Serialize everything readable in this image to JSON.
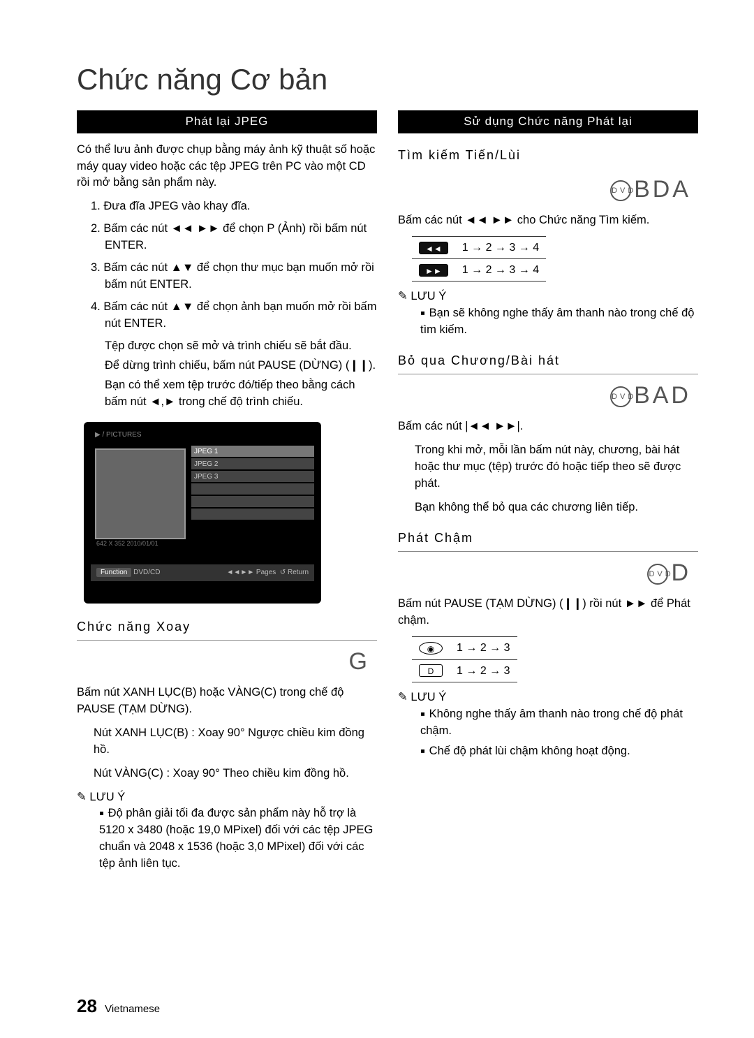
{
  "title": "Chức năng Cơ bản",
  "left": {
    "bar": "Phát lại JPEG",
    "intro": "Có thể lưu ảnh được chụp bằng máy ảnh kỹ thuật số hoặc máy quay video hoặc các tệp JPEG trên PC vào một CD rồi mở bằng sản phẩm này.",
    "steps": [
      "1.  Đưa đĩa JPEG vào khay đĩa.",
      "2.  Bấm các nút ◄◄ ►► để chọn P          (Ảnh) rồi bấm nút ENTER.",
      "3.  Bấm các nút ▲▼ để chọn thư mục bạn muốn mở rồi bấm nút ENTER.",
      "4.  Bấm các nút ▲▼ để chọn ảnh bạn muốn mở rồi bấm nút ENTER."
    ],
    "subs": [
      "Tệp được chọn sẽ mở và trình chiếu sẽ bắt đầu.",
      "Để dừng trình chiếu, bấm nút PAUSE (DỪNG) (❙❙).",
      "Bạn có thể xem tệp trước đó/tiếp theo bằng cách bấm nút ◄,► trong chế độ trình chiếu."
    ],
    "tv": {
      "path": "▶ / PICTURES",
      "items": [
        "JPEG 1",
        "JPEG 2",
        "JPEG 3",
        "",
        "",
        ""
      ],
      "meta": "642 X 352      2010/01/01",
      "func_label": "Function",
      "func_val": "DVD/CD",
      "pages": "◄◄►► Pages",
      "ret": "↺ Return"
    },
    "rotate_head": "Chức năng Xoay",
    "rotate_icon": "G",
    "rotate_body": "Bấm nút XANH LỤC(B) hoặc VÀNG(C) trong chế độ PAUSE (TẠM DỪNG).",
    "rotate_b": "Nút XANH LỤC(B) : Xoay 90° Ngược chiều kim đồng hồ.",
    "rotate_c": "Nút VÀNG(C) : Xoay 90° Theo chiều kim đồng hồ.",
    "note_label": "LƯU Ý",
    "note1": "Độ phân giải tối đa được sản phẩm này hỗ trợ là 5120 x 3480 (hoặc 19,0 MPixel) đối với các tệp JPEG chuẩn và 2048 x 1536 (hoặc 3,0 MPixel) đối với các tệp ảnh liên tục."
  },
  "right": {
    "bar": "Sử dụng Chức năng Phát lại",
    "s1_head": "Tìm kiếm Tiến/Lùi",
    "s1_big": "BDA",
    "s1_body": "Bấm các nút ◄◄ ►► cho Chức năng Tìm kiếm.",
    "s1_rows": [
      {
        "btn": "◄◄",
        "seq": [
          "1",
          "2",
          "3",
          "4"
        ]
      },
      {
        "btn": "►►",
        "seq": [
          "1",
          "2",
          "3",
          "4"
        ]
      }
    ],
    "s1_note": "Bạn sẽ không nghe thấy âm thanh nào trong chế độ tìm kiếm.",
    "s2_head": "Bỏ qua Chương/Bài hát",
    "s2_big": "BAD",
    "s2_body": "Bấm các nút |◄◄ ►►|.",
    "s2_p1": "Trong khi mở, mỗi lần bấm nút này, chương, bài hát hoặc thư mục (tệp) trước đó hoặc tiếp theo sẽ được phát.",
    "s2_p2": "Bạn không thể bỏ qua các chương liên tiếp.",
    "s3_head": "Phát Chậm",
    "s3_icon": "D",
    "s3_body": "Bấm nút PAUSE (TẠM DỪNG) (❙❙) rồi nút ►► để Phát chậm.",
    "s3_rows": [
      {
        "btn": "◉",
        "seq": [
          "1",
          "2",
          "3"
        ]
      },
      {
        "btn": "D",
        "seq": [
          "1",
          "2",
          "3"
        ]
      }
    ],
    "s3_note1": "Không nghe thấy âm thanh nào trong chế độ phát chậm.",
    "s3_note2": "Chế độ phát lùi chậm không hoạt động.",
    "note_label": "LƯU Ý"
  },
  "footer": {
    "page": "28",
    "lang": "Vietnamese"
  }
}
